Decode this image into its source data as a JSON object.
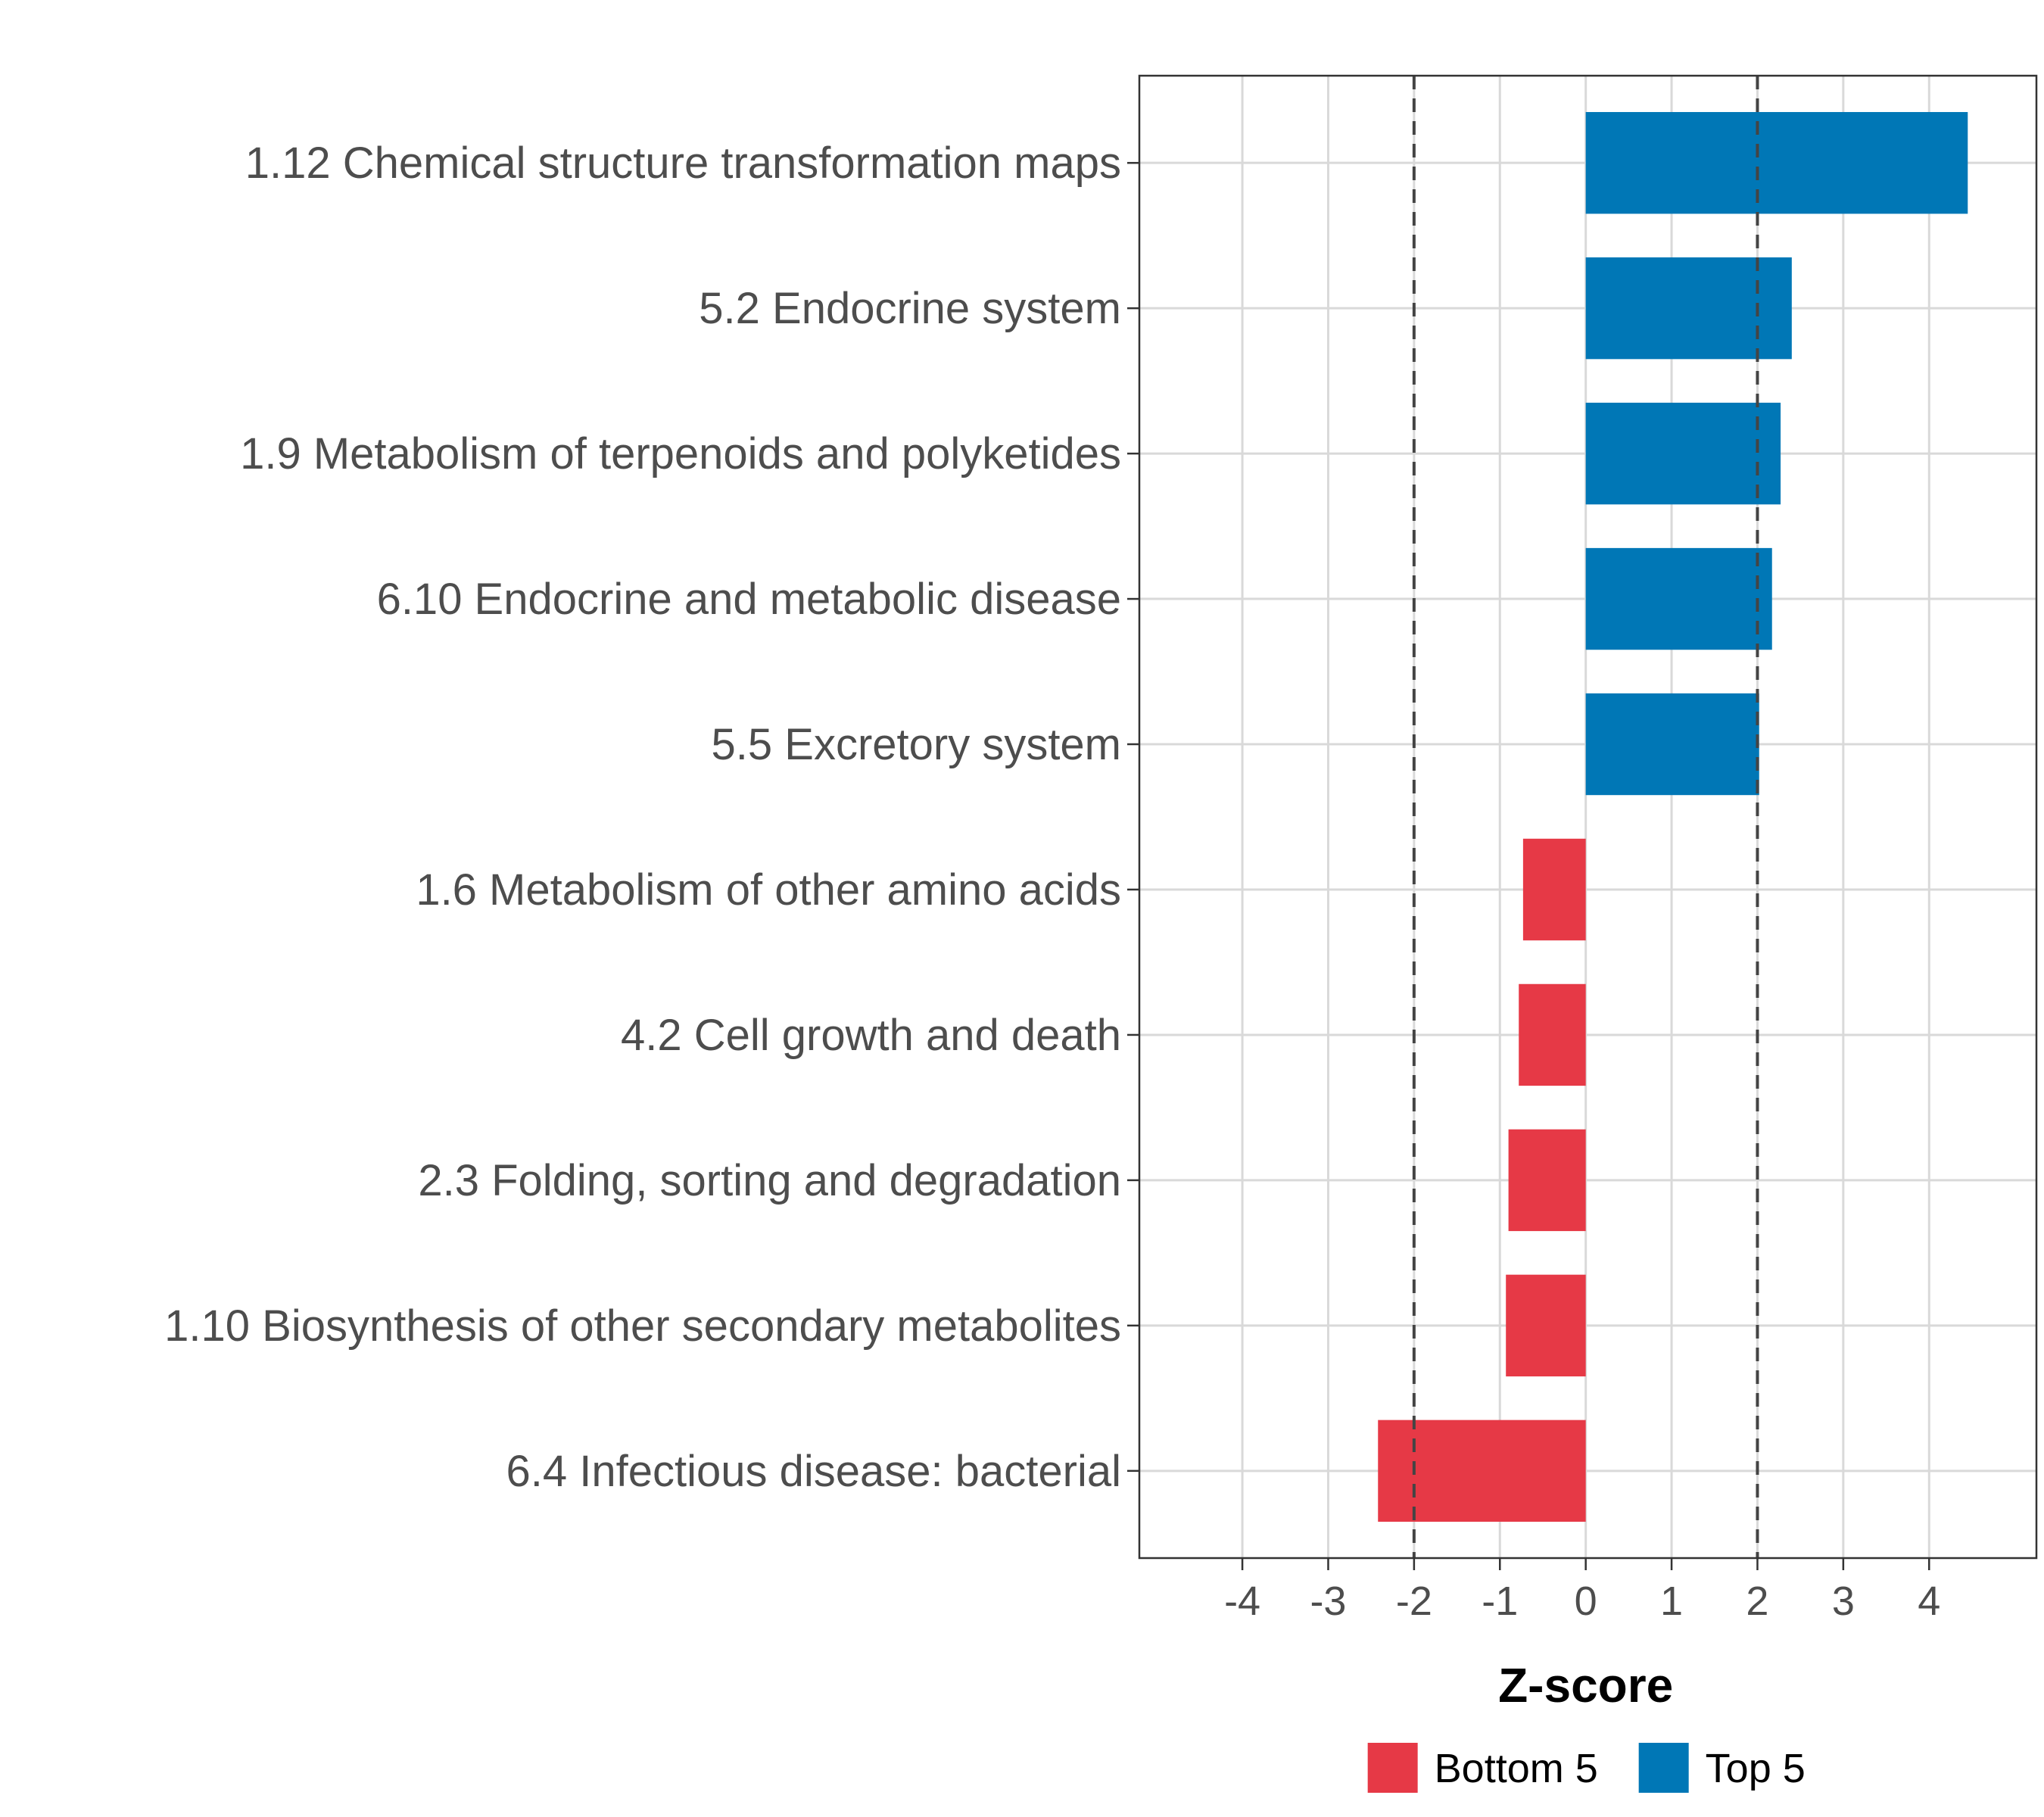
{
  "chart_data": {
    "type": "bar",
    "orientation": "horizontal",
    "categories": [
      "1.12 Chemical structure transformation maps",
      "5.2 Endocrine system",
      "1.9 Metabolism of terpenoids and polyketides",
      "6.10 Endocrine and metabolic disease",
      "5.5 Excretory system",
      "1.6 Metabolism of other amino acids",
      "4.2 Cell growth and death",
      "2.3 Folding, sorting and degradation",
      "1.10 Biosynthesis of other secondary metabolites",
      "6.4 Infectious disease: bacterial"
    ],
    "values": [
      4.45,
      2.4,
      2.27,
      2.17,
      2.02,
      -0.73,
      -0.78,
      -0.9,
      -0.93,
      -2.42
    ],
    "groups": [
      "Top 5",
      "Top 5",
      "Top 5",
      "Top 5",
      "Top 5",
      "Bottom 5",
      "Bottom 5",
      "Bottom 5",
      "Bottom 5",
      "Bottom 5"
    ],
    "xlabel": "Z-score",
    "ylabel": "",
    "xlim": [
      -5.2,
      5.25
    ],
    "xticks": [
      "-4",
      "-3",
      "-2",
      "-1",
      "0",
      "1",
      "2",
      "3",
      "4"
    ],
    "reference_lines": [
      -2,
      2
    ],
    "grid": true,
    "legend": {
      "position": "bottom",
      "entries": [
        {
          "label": "Bottom 5",
          "color": "#e63946"
        },
        {
          "label": "Top 5",
          "color": "#0077b6"
        }
      ]
    },
    "colors": {
      "Top 5": "#0077b6",
      "Bottom 5": "#e63946"
    }
  }
}
